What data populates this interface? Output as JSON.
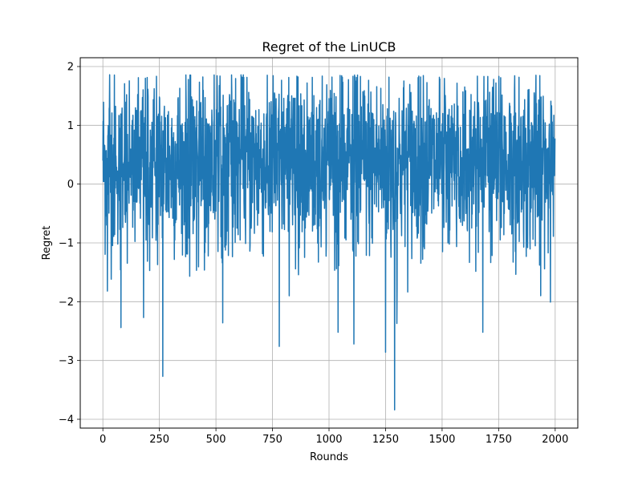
{
  "chart_data": {
    "type": "line",
    "title": "Regret of the LinUCB",
    "xlabel": "Rounds",
    "ylabel": "Regret",
    "xlim": [
      -100,
      2100
    ],
    "ylim": [
      -4.15,
      2.15
    ],
    "xticks": [
      0,
      250,
      500,
      750,
      1000,
      1250,
      1500,
      1750,
      2000
    ],
    "yticks": [
      -4,
      -3,
      -2,
      -1,
      0,
      1,
      2
    ],
    "grid": true,
    "legend": false,
    "line_color": "#1f77b4",
    "n_points": 2000,
    "value_range": [
      -3.84,
      1.86
    ],
    "notable_points": [
      {
        "x": 0,
        "y": 0.4
      },
      {
        "x": 20,
        "y": -1.82
      },
      {
        "x": 30,
        "y": 1.86
      },
      {
        "x": 80,
        "y": -2.44
      },
      {
        "x": 180,
        "y": -2.27
      },
      {
        "x": 265,
        "y": -3.27
      },
      {
        "x": 530,
        "y": -2.36
      },
      {
        "x": 780,
        "y": -2.76
      },
      {
        "x": 1040,
        "y": -2.52
      },
      {
        "x": 1110,
        "y": -2.72
      },
      {
        "x": 1250,
        "y": -2.86
      },
      {
        "x": 1290,
        "y": -3.84
      },
      {
        "x": 1300,
        "y": -2.37
      },
      {
        "x": 1680,
        "y": -2.52
      },
      {
        "x": 1995,
        "y": 0.2
      }
    ]
  }
}
